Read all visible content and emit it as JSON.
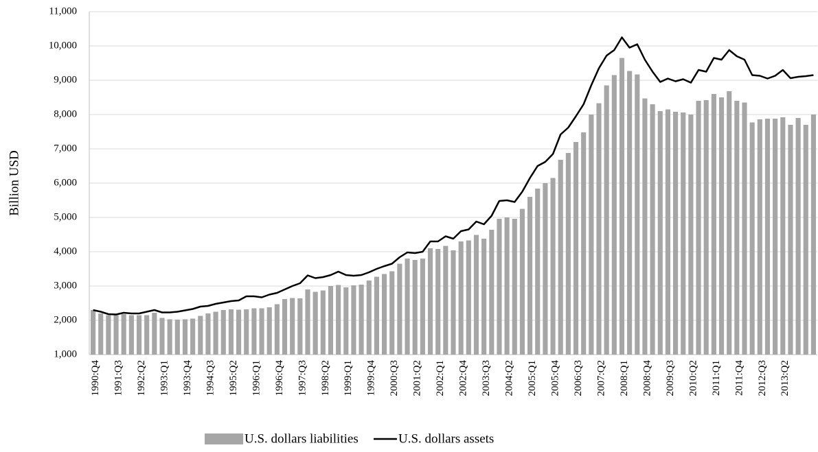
{
  "chart_data": {
    "type": "bar",
    "y_label": "Billion USD",
    "categories": [
      "1990:Q4",
      null,
      null,
      "1991:Q3",
      null,
      null,
      "1992:Q2",
      null,
      null,
      "1993:Q1",
      null,
      null,
      "1993:Q4",
      null,
      null,
      "1994:Q3",
      null,
      null,
      "1995:Q2",
      null,
      null,
      "1996:Q1",
      null,
      null,
      "1996:Q4",
      null,
      null,
      "1997:Q3",
      null,
      null,
      "1998:Q2",
      null,
      null,
      "1999:Q1",
      null,
      null,
      "1999:Q4",
      null,
      null,
      "2000:Q3",
      null,
      null,
      "2001:Q2",
      null,
      null,
      "2002:Q1",
      null,
      null,
      "2002:Q4",
      null,
      null,
      "2003:Q3",
      null,
      null,
      "2004:Q2",
      null,
      null,
      "2005:Q1",
      null,
      null,
      "2005:Q4",
      null,
      null,
      "2006:Q3",
      null,
      null,
      "2007:Q2",
      null,
      null,
      "2008:Q1",
      null,
      null,
      "2008:Q4",
      null,
      null,
      "2009:Q3",
      null,
      null,
      "2010:Q2",
      null,
      null,
      "2011:Q1",
      null,
      null,
      "2011:Q4",
      null,
      null,
      "2012:Q3",
      null,
      null,
      "2013:Q2",
      null,
      null,
      null,
      null
    ],
    "series": [
      {
        "name": "U.S. dollars liabilities",
        "type": "bar",
        "color": "#a6a6a6",
        "values": [
          2300,
          2200,
          2150,
          2150,
          2180,
          2150,
          2150,
          2150,
          2220,
          2070,
          2030,
          2020,
          2030,
          2050,
          2130,
          2200,
          2250,
          2300,
          2320,
          2310,
          2320,
          2350,
          2350,
          2380,
          2470,
          2620,
          2650,
          2640,
          2900,
          2830,
          2870,
          3000,
          3030,
          2960,
          3020,
          3040,
          3160,
          3270,
          3350,
          3430,
          3650,
          3800,
          3760,
          3800,
          4100,
          4080,
          4170,
          4040,
          4300,
          4330,
          4490,
          4380,
          4640,
          4960,
          5000,
          4960,
          5250,
          5600,
          5840,
          6000,
          6150,
          6680,
          6880,
          7200,
          7480,
          8000,
          8330,
          8850,
          9150,
          9650,
          9270,
          9170,
          8470,
          8300,
          8100,
          8150,
          8080,
          8060,
          8000,
          8400,
          8420,
          8600,
          8500,
          8680,
          8400,
          8350,
          7770,
          7860,
          7880,
          7880,
          7920,
          7700,
          7900,
          7700,
          8000
        ]
      },
      {
        "name": "U.S. dollars assets",
        "type": "line",
        "color": "#000000",
        "values": [
          2300,
          2250,
          2180,
          2170,
          2220,
          2200,
          2200,
          2250,
          2300,
          2230,
          2230,
          2250,
          2290,
          2330,
          2400,
          2420,
          2480,
          2520,
          2560,
          2580,
          2700,
          2700,
          2670,
          2750,
          2800,
          2900,
          3000,
          3080,
          3310,
          3230,
          3260,
          3320,
          3420,
          3320,
          3300,
          3320,
          3400,
          3500,
          3580,
          3650,
          3840,
          3980,
          3960,
          4000,
          4300,
          4300,
          4450,
          4380,
          4600,
          4650,
          4880,
          4800,
          5050,
          5480,
          5500,
          5450,
          5750,
          6150,
          6500,
          6620,
          6850,
          7420,
          7620,
          7950,
          8300,
          8850,
          9350,
          9720,
          9880,
          10250,
          9950,
          10050,
          9600,
          9250,
          8950,
          9050,
          8970,
          9030,
          8930,
          9300,
          9250,
          9650,
          9600,
          9880,
          9700,
          9600,
          9150,
          9130,
          9050,
          9130,
          9300,
          9060,
          9100,
          9120,
          9150
        ]
      }
    ],
    "ylim": [
      1000,
      11000
    ],
    "yticks": [
      {
        "value": 1000,
        "label": "1,000"
      },
      {
        "value": 2000,
        "label": "2,000"
      },
      {
        "value": 3000,
        "label": "3,000"
      },
      {
        "value": 4000,
        "label": "4,000"
      },
      {
        "value": 5000,
        "label": "5,000"
      },
      {
        "value": 6000,
        "label": "6,000"
      },
      {
        "value": 7000,
        "label": "7,000"
      },
      {
        "value": 8000,
        "label": "8,000"
      },
      {
        "value": 9000,
        "label": "9,000"
      },
      {
        "value": 10000,
        "label": "10,000"
      },
      {
        "value": 11000,
        "label": "11,000"
      }
    ],
    "grid": true,
    "legend": "bottom"
  }
}
